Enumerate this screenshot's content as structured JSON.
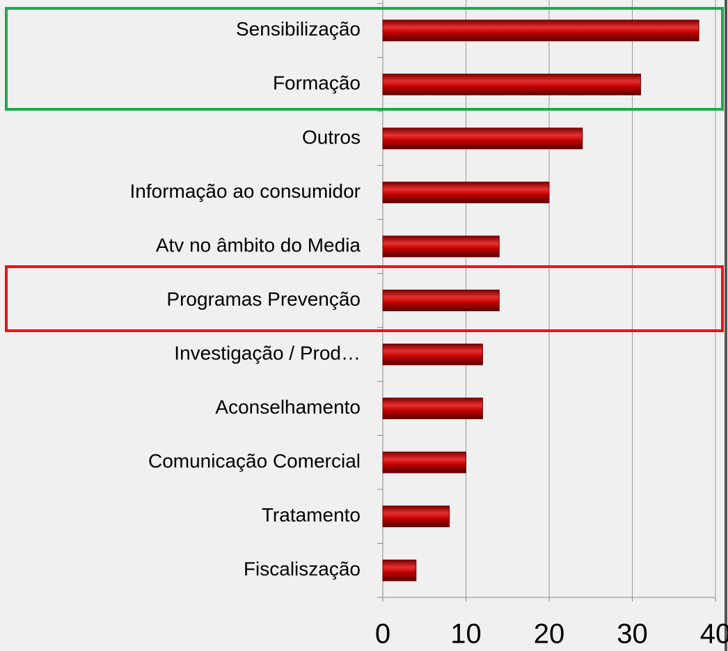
{
  "chart_data": {
    "type": "barh",
    "categories": [
      "Sensibilização",
      "Formação",
      "Outros",
      "Informação ao consumidor",
      "Atv no âmbito do Media",
      "Programas Prevenção",
      "Investigação / Prod…",
      "Aconselhamento",
      "Comunicação Comercial",
      "Tratamento",
      "Fiscaliszação"
    ],
    "values": [
      38,
      31,
      24,
      20,
      14,
      14,
      12,
      12,
      10,
      8,
      4
    ],
    "color": "#c00000",
    "xlim": [
      0,
      40
    ],
    "xticks": [
      0,
      10,
      20,
      30,
      40
    ],
    "grid": true
  }
}
